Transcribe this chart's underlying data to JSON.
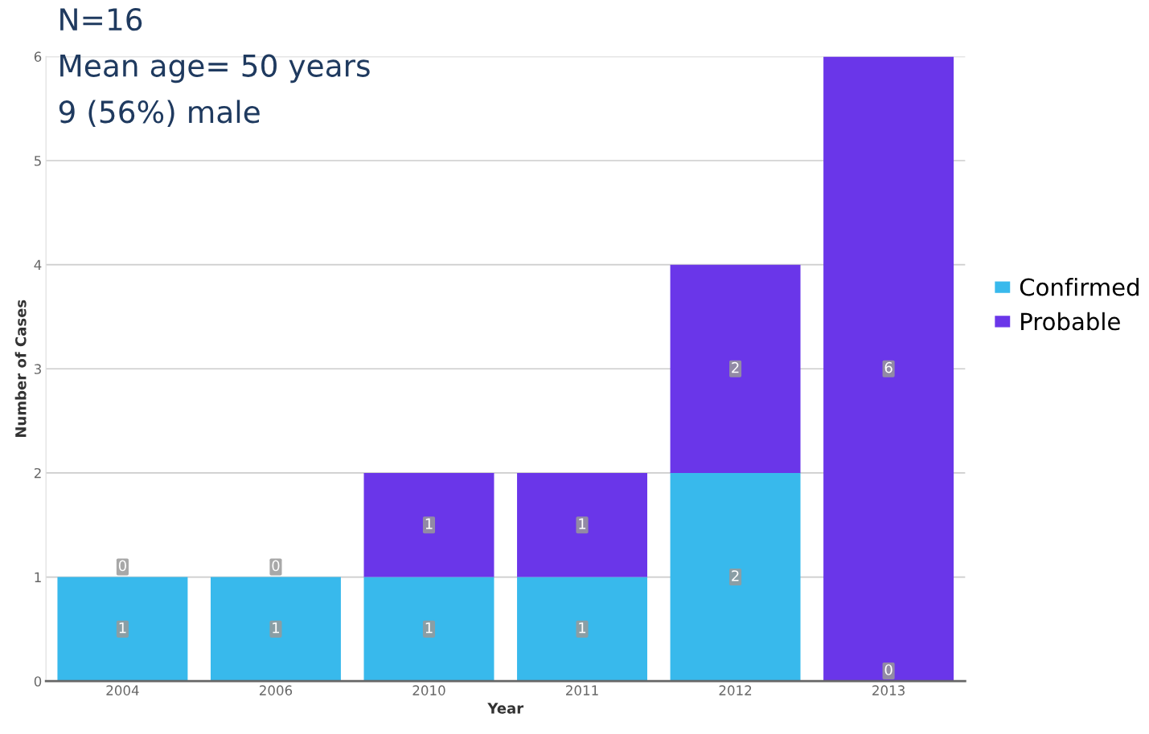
{
  "chart_data": {
    "type": "bar",
    "stacked": true,
    "xlabel": "Year",
    "ylabel": "Number of Cases",
    "categories": [
      "2004",
      "2006",
      "2010",
      "2011",
      "2012",
      "2013"
    ],
    "series": [
      {
        "name": "Confirmed",
        "color": "#38b9ec",
        "values": [
          1,
          1,
          1,
          1,
          2,
          0
        ],
        "value_labels": [
          "1",
          "1",
          "1",
          "1",
          "2",
          null
        ]
      },
      {
        "name": "Probable",
        "color": "#6a36e9",
        "values": [
          0,
          0,
          1,
          1,
          2,
          6
        ],
        "value_labels": [
          "0",
          "0",
          "1",
          "1",
          "2",
          "6"
        ]
      }
    ],
    "ylim": [
      0,
      6
    ],
    "yticks": [
      0,
      1,
      2,
      3,
      4,
      5,
      6
    ],
    "grid": "y",
    "legend": "right",
    "annotations": [
      "N=16",
      "Mean age= 50 years",
      "9 (56%) male",
      {
        "text": "0",
        "x": "2013",
        "y": 0
      }
    ]
  }
}
